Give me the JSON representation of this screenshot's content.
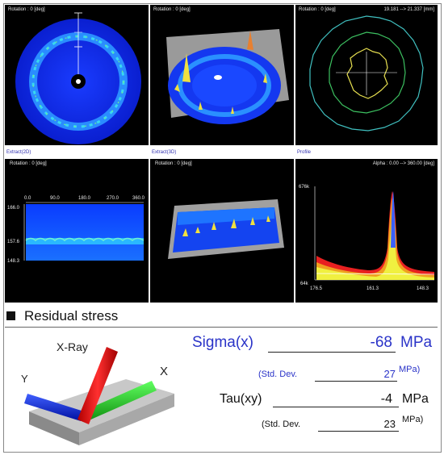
{
  "panels": {
    "p1": {
      "header": "Rotation : 0 [deg]"
    },
    "p2": {
      "header": "Rotation : 0 [deg]"
    },
    "p3": {
      "header_left": "Rotation : 0 [deg]",
      "header_right": "19.181 --> 21.337 [mm]"
    },
    "p4": {
      "tab": "Extract(2D)",
      "header": "Rotation : 0 [deg]",
      "x_ticks": [
        "0.0",
        "90.0",
        "180.0",
        "270.0",
        "360.0"
      ],
      "y_ticks": [
        "166.0",
        "157.6",
        "148.3"
      ]
    },
    "p5": {
      "tab": "Extract(3D)",
      "header": "Rotation : 0 [deg]"
    },
    "p6": {
      "tab": "Profile",
      "header": "Alpha : 0.00 --> 360.00 [deg]",
      "y_top": "676k",
      "y_bottom": "64k",
      "x_ticks": [
        "176.5",
        "161.3",
        "148.3"
      ]
    }
  },
  "residual_stress": {
    "title": "Residual stress",
    "axis_xray": "X-Ray",
    "axis_x": "X",
    "axis_y": "Y",
    "sigma_label": "Sigma(x)",
    "sigma_value": "-68",
    "sigma_unit": "MPa",
    "sigma_std_label": "(Std. Dev.",
    "sigma_std_value": "27",
    "sigma_std_unit": "MPa)",
    "tau_label": "Tau(xy)",
    "tau_value": "-4",
    "tau_unit": "MPa",
    "tau_std_label": "(Std. Dev.",
    "tau_std_value": "23",
    "tau_std_unit": "MPa)"
  },
  "colors": {
    "accent_blue": "#2a33c8",
    "panel_bg": "#000000"
  }
}
